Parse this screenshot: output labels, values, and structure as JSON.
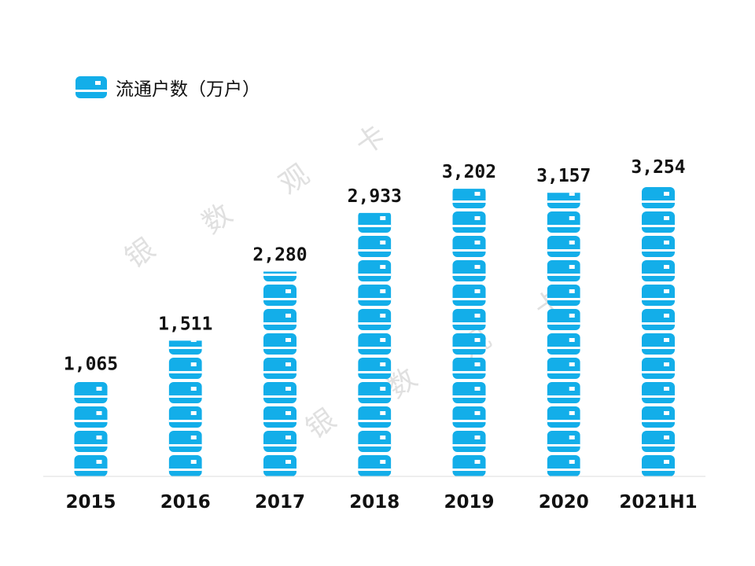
{
  "chart_data": {
    "type": "bar",
    "categories": [
      "2015",
      "2016",
      "2017",
      "2018",
      "2019",
      "2020",
      "2021H1"
    ],
    "series": [
      {
        "name": "流通户数（万户）",
        "values": [
          1065,
          1511,
          2280,
          2933,
          3202,
          3157,
          3254
        ]
      }
    ],
    "value_labels": [
      "1,065",
      "1,511",
      "2,280",
      "2,933",
      "3,202",
      "3,157",
      "3,254"
    ],
    "ylim": [
      0,
      3300
    ],
    "grid": false,
    "legend_position": "top-left",
    "bar_style": "stacked card pictograph",
    "colors": {
      "bar": "#13aee9",
      "card_chip": "#ffffff",
      "axis": "#dddddd"
    }
  },
  "legend": {
    "label": "流通户数（万户）",
    "icon": "card-icon"
  },
  "watermarks": [
    {
      "chars": [
        "银",
        "数",
        "观",
        "卡"
      ]
    },
    {
      "chars": [
        "银",
        "数",
        "观",
        "卡"
      ]
    }
  ]
}
